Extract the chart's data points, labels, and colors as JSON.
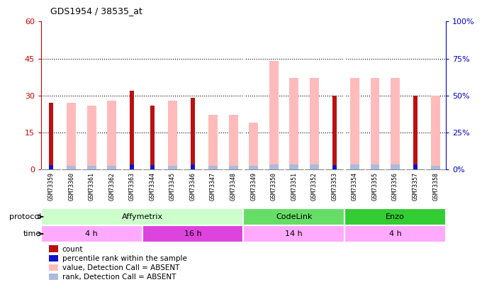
{
  "title": "GDS1954 / 38535_at",
  "samples": [
    "GSM73359",
    "GSM73360",
    "GSM73361",
    "GSM73362",
    "GSM73363",
    "GSM73344",
    "GSM73345",
    "GSM73346",
    "GSM73347",
    "GSM73348",
    "GSM73349",
    "GSM73350",
    "GSM73351",
    "GSM73352",
    "GSM73353",
    "GSM73354",
    "GSM73355",
    "GSM73356",
    "GSM73357",
    "GSM73358"
  ],
  "count": [
    27,
    0,
    0,
    0,
    32,
    26,
    0,
    29,
    0,
    0,
    0,
    0,
    0,
    0,
    30,
    0,
    0,
    0,
    30,
    0
  ],
  "value_absent": [
    0,
    27,
    26,
    28,
    0,
    0,
    28,
    0,
    22,
    22,
    19,
    44,
    37,
    37,
    0,
    37,
    37,
    37,
    0,
    30
  ],
  "rank_count": [
    1.8,
    0,
    0,
    0,
    2.0,
    1.8,
    0,
    2.0,
    0,
    0,
    0,
    0,
    0,
    0,
    1.8,
    0,
    0,
    0,
    2.0,
    0
  ],
  "rank_absent": [
    0,
    1.5,
    1.5,
    1.5,
    0,
    0,
    1.5,
    0,
    1.5,
    1.5,
    1.5,
    2.0,
    2.0,
    2.0,
    0,
    2.0,
    2.0,
    2.0,
    0,
    1.5
  ],
  "ylim_left": [
    0,
    60
  ],
  "ylim_right": [
    0,
    100
  ],
  "yticks_left": [
    0,
    15,
    30,
    45,
    60
  ],
  "yticks_right": [
    0,
    25,
    50,
    75,
    100
  ],
  "protocol_groups": [
    {
      "label": "Affymetrix",
      "start": 0,
      "end": 9,
      "color": "#ccffcc"
    },
    {
      "label": "CodeLink",
      "start": 10,
      "end": 14,
      "color": "#66dd66"
    },
    {
      "label": "Enzo",
      "start": 15,
      "end": 19,
      "color": "#33cc33"
    }
  ],
  "time_groups": [
    {
      "label": "4 h",
      "start": 0,
      "end": 4,
      "color": "#ffaaff"
    },
    {
      "label": "16 h",
      "start": 5,
      "end": 9,
      "color": "#dd44dd"
    },
    {
      "label": "14 h",
      "start": 10,
      "end": 14,
      "color": "#ffaaff"
    },
    {
      "label": "4 h",
      "start": 15,
      "end": 19,
      "color": "#ffaaff"
    }
  ],
  "color_count": "#bb1111",
  "color_value_absent": "#ffbbbb",
  "color_rank_count": "#1111cc",
  "color_rank_absent": "#aabbdd",
  "axis_left_color": "#cc0000",
  "axis_right_color": "#0000cc",
  "sample_bg": "#cccccc",
  "plot_bg": "#ffffff",
  "border_color": "#888888"
}
